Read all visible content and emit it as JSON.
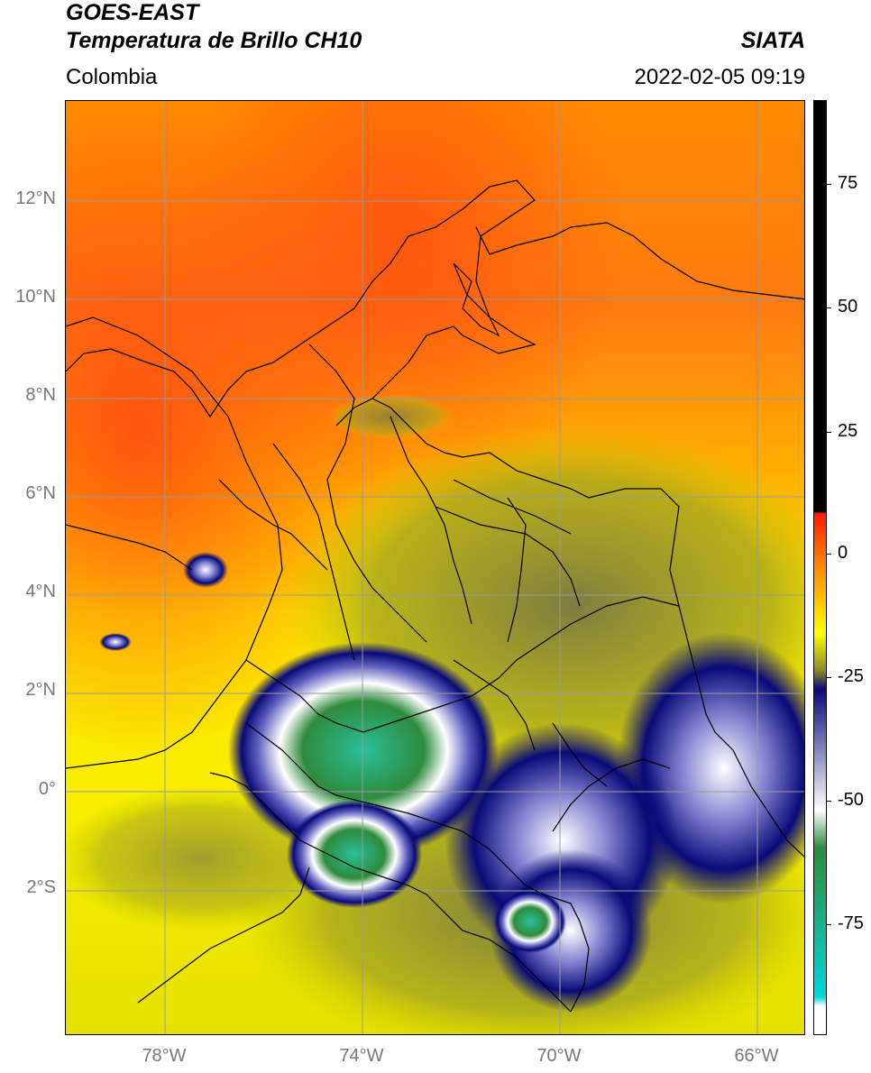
{
  "header": {
    "satellite": "GOES-EAST",
    "product": "Temperatura de Brillo CH10",
    "brand": "SIATA",
    "region": "Colombia",
    "datetime": "2022-02-05 09:19"
  },
  "map": {
    "lat_ticks": [
      "12°N",
      "10°N",
      "8°N",
      "6°N",
      "4°N",
      "2°N",
      "0°",
      "2°S"
    ],
    "lon_ticks": [
      "78°W",
      "74°W",
      "70°W",
      "66°W"
    ],
    "gridline_color": "#9a9a9a",
    "border_color": "#000000"
  },
  "colorbar": {
    "labels": [
      "75",
      "50",
      "25",
      "0",
      "-25",
      "-50",
      "-75"
    ],
    "colors": {
      "warm_above": "#000000",
      "zero_red": "#ff1a00",
      "orange": "#ff8c00",
      "yellow": "#ffff00",
      "olive": "#8c8c28",
      "navy": "#0a0a78",
      "white": "#ffffff",
      "green": "#2e8b3c",
      "cyan": "#00d8d8"
    }
  }
}
